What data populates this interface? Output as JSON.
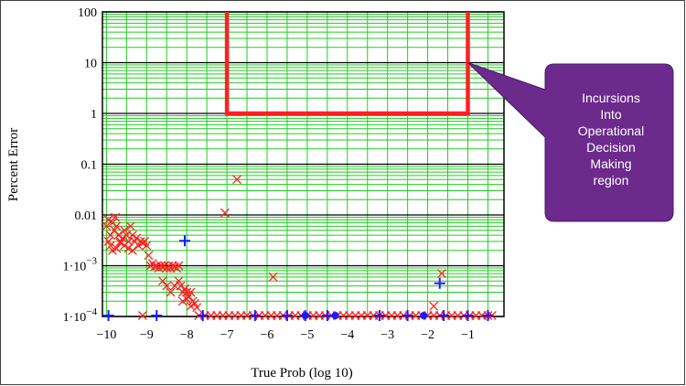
{
  "chart_data": {
    "type": "scatter",
    "xlabel": "True Prob (log 10)",
    "ylabel": "Percent Error",
    "xlim": [
      -10.1,
      -0.1
    ],
    "ylog": true,
    "ylim_exp": [
      -4,
      2
    ],
    "x_ticks": [
      -10,
      -9,
      -8,
      -7,
      -6,
      -5,
      -4,
      -3,
      -2,
      -1
    ],
    "y_ticks": [
      {
        "exp": -4,
        "label": "1·10",
        "sup": "−4"
      },
      {
        "exp": -3,
        "label": "1·10",
        "sup": "−3"
      },
      {
        "exp": -2,
        "label": "0.01",
        "sup": ""
      },
      {
        "exp": -1,
        "label": "0.1",
        "sup": ""
      },
      {
        "exp": 0,
        "label": "1",
        "sup": ""
      },
      {
        "exp": 1,
        "label": "10",
        "sup": ""
      },
      {
        "exp": 2,
        "label": "100",
        "sup": ""
      }
    ],
    "grid": {
      "major_color": "#000000",
      "minor_color": "#22cc22"
    },
    "region": {
      "x": [
        -7.0,
        -7.0,
        -1.0,
        -1.0
      ],
      "y": [
        100,
        1,
        1,
        100
      ],
      "color": "#ff2020"
    },
    "series": [
      {
        "marker": "cross",
        "color": "#ff2020",
        "points": [
          [
            -10.0,
            0.006
          ],
          [
            -9.95,
            0.008
          ],
          [
            -9.9,
            0.004
          ],
          [
            -9.85,
            0.007
          ],
          [
            -9.8,
            0.005
          ],
          [
            -9.78,
            0.009
          ],
          [
            -9.75,
            0.006
          ],
          [
            -9.7,
            0.004
          ],
          [
            -9.65,
            0.003
          ],
          [
            -9.6,
            0.0035
          ],
          [
            -9.55,
            0.005
          ],
          [
            -9.5,
            0.004
          ],
          [
            -9.45,
            0.003
          ],
          [
            -9.4,
            0.006
          ],
          [
            -9.35,
            0.004
          ],
          [
            -9.3,
            0.003
          ],
          [
            -9.25,
            0.0035
          ],
          [
            -9.2,
            0.0025
          ],
          [
            -9.15,
            0.003
          ],
          [
            -9.1,
            0.0028
          ],
          [
            -9.05,
            0.003
          ],
          [
            -9.0,
            0.0025
          ],
          [
            -9.95,
            0.003
          ],
          [
            -9.9,
            0.0025
          ],
          [
            -9.85,
            0.002
          ],
          [
            -9.75,
            0.0022
          ],
          [
            -9.65,
            0.0028
          ],
          [
            -9.55,
            0.0025
          ],
          [
            -9.45,
            0.0022
          ],
          [
            -9.35,
            0.002
          ],
          [
            -8.95,
            0.0016
          ],
          [
            -8.9,
            0.001
          ],
          [
            -8.85,
            0.0011
          ],
          [
            -8.8,
            0.00095
          ],
          [
            -8.75,
            0.001
          ],
          [
            -8.7,
            0.0009
          ],
          [
            -8.65,
            0.001
          ],
          [
            -8.6,
            0.00095
          ],
          [
            -8.55,
            0.001
          ],
          [
            -8.5,
            0.0009
          ],
          [
            -8.45,
            0.001
          ],
          [
            -8.4,
            0.0009
          ],
          [
            -8.35,
            0.001
          ],
          [
            -8.3,
            0.00095
          ],
          [
            -8.25,
            0.0009
          ],
          [
            -8.2,
            0.001
          ],
          [
            -8.6,
            0.0005
          ],
          [
            -8.5,
            0.0004
          ],
          [
            -8.4,
            0.0003
          ],
          [
            -8.3,
            0.0004
          ],
          [
            -8.2,
            0.0005
          ],
          [
            -8.15,
            0.0004
          ],
          [
            -8.1,
            0.0003
          ],
          [
            -8.05,
            0.00035
          ],
          [
            -8.0,
            0.0003
          ],
          [
            -7.95,
            0.00025
          ],
          [
            -7.9,
            0.0003
          ],
          [
            -7.85,
            0.0002
          ],
          [
            -7.8,
            0.00018
          ],
          [
            -7.75,
            0.00015
          ],
          [
            -8.1,
            0.0002
          ],
          [
            -8.0,
            0.00022
          ],
          [
            -7.9,
            0.00016
          ],
          [
            -9.1,
            0.0001
          ],
          [
            -7.7,
            0.0001
          ],
          [
            -7.55,
            0.0001
          ],
          [
            -7.4,
            0.0001
          ],
          [
            -7.25,
            0.0001
          ],
          [
            -7.1,
            0.0001
          ],
          [
            -6.95,
            0.0001
          ],
          [
            -6.8,
            0.0001
          ],
          [
            -6.65,
            0.0001
          ],
          [
            -6.5,
            0.0001
          ],
          [
            -6.35,
            0.0001
          ],
          [
            -6.2,
            0.0001
          ],
          [
            -6.05,
            0.0001
          ],
          [
            -5.9,
            0.0001
          ],
          [
            -5.75,
            0.0001
          ],
          [
            -5.6,
            0.0001
          ],
          [
            -5.45,
            0.0001
          ],
          [
            -5.3,
            0.0001
          ],
          [
            -5.15,
            0.0001
          ],
          [
            -5.0,
            0.0001
          ],
          [
            -4.85,
            0.0001
          ],
          [
            -4.7,
            0.0001
          ],
          [
            -4.55,
            0.0001
          ],
          [
            -4.4,
            0.0001
          ],
          [
            -4.25,
            0.0001
          ],
          [
            -4.1,
            0.0001
          ],
          [
            -3.95,
            0.0001
          ],
          [
            -3.8,
            0.0001
          ],
          [
            -3.65,
            0.0001
          ],
          [
            -3.5,
            0.0001
          ],
          [
            -3.35,
            0.0001
          ],
          [
            -3.2,
            0.0001
          ],
          [
            -3.05,
            0.0001
          ],
          [
            -2.9,
            0.0001
          ],
          [
            -2.75,
            0.0001
          ],
          [
            -2.6,
            0.0001
          ],
          [
            -2.45,
            0.0001
          ],
          [
            -2.3,
            0.0001
          ],
          [
            -2.15,
            0.0001
          ],
          [
            -2.0,
            0.0001
          ],
          [
            -1.85,
            0.0001
          ],
          [
            -1.7,
            0.0001
          ],
          [
            -1.55,
            0.0001
          ],
          [
            -1.4,
            0.0001
          ],
          [
            -1.25,
            0.0001
          ],
          [
            -1.1,
            0.0001
          ],
          [
            -0.95,
            0.0001
          ],
          [
            -0.8,
            0.0001
          ],
          [
            -0.65,
            0.0001
          ],
          [
            -0.5,
            0.0001
          ],
          [
            -0.4,
            0.0001
          ],
          [
            -7.05,
            0.011
          ],
          [
            -6.75,
            0.05
          ],
          [
            -5.85,
            0.0006
          ],
          [
            -1.65,
            0.0007
          ],
          [
            -1.85,
            0.00016
          ]
        ]
      },
      {
        "marker": "plus",
        "color": "#1a1aff",
        "points": [
          [
            -9.95,
            0.0001
          ],
          [
            -8.75,
            0.0001
          ],
          [
            -8.05,
            0.0031
          ],
          [
            -7.6,
            0.0001
          ],
          [
            -6.3,
            0.0001
          ],
          [
            -5.5,
            0.0001
          ],
          [
            -5.05,
            0.0001
          ],
          [
            -4.5,
            0.0001
          ],
          [
            -3.2,
            0.0001
          ],
          [
            -2.5,
            0.0001
          ],
          [
            -1.7,
            0.00045
          ],
          [
            -1.6,
            0.0001
          ],
          [
            -1.0,
            0.0001
          ],
          [
            -0.5,
            0.0001
          ]
        ]
      },
      {
        "marker": "dot",
        "color": "#1a1aff",
        "points": [
          [
            -5.05,
            0.0001
          ],
          [
            -4.3,
            0.0001
          ],
          [
            -2.1,
            0.0001
          ]
        ]
      }
    ],
    "callout": {
      "lines": [
        "Incursions",
        "Into",
        "Operational",
        "Decision",
        "Making",
        "region"
      ],
      "color": "#6b2a8c"
    }
  }
}
